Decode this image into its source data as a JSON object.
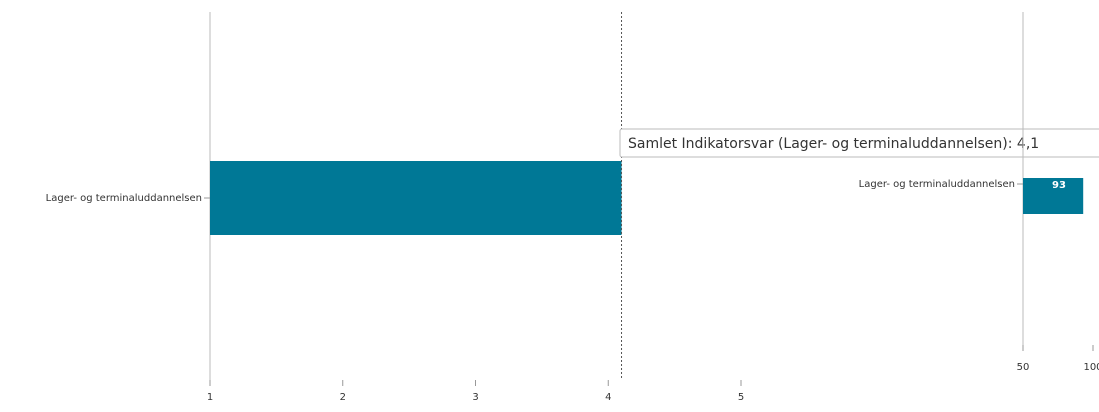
{
  "chart_data": [
    {
      "type": "bar",
      "categories": [
        "Lager- og terminaluddannelsen"
      ],
      "values": [
        4.1
      ],
      "color": "#007896",
      "xlim": [
        1,
        5
      ],
      "xticks": [
        1,
        2,
        3,
        4,
        5
      ],
      "tooltip": "Samlet Indikatorsvar (Lager- og terminaluddannelsen): 4,1"
    },
    {
      "type": "bar",
      "categories": [
        "Lager- og terminaluddannelsen"
      ],
      "values": [
        93
      ],
      "color": "#007896",
      "xlim": [
        50,
        100
      ],
      "xticks": [
        50,
        100
      ]
    }
  ]
}
